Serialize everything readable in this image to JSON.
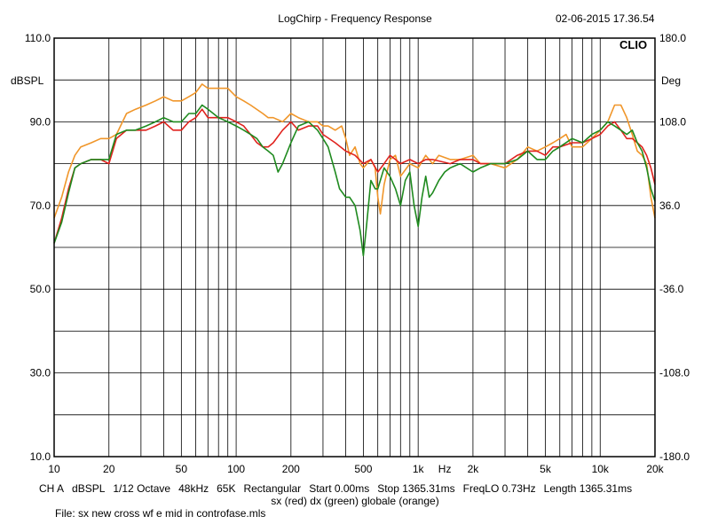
{
  "header": {
    "title": "LogChirp - Frequency Response",
    "timestamp": "02-06-2015 17.36.54",
    "brand": "CLIO"
  },
  "footer": {
    "settings": [
      "CH A",
      "dBSPL",
      "1/12 Octave",
      "48kHz",
      "65K",
      "Rectangular",
      "Start 0.00ms",
      "Stop 1365.31ms",
      "FreqLO 0.73Hz",
      "Length 1365.31ms"
    ],
    "legend": "sx (red) dx (green) globale (orange)",
    "file": "File: sx new cross wf e mid in controfase.mls"
  },
  "colors": {
    "red": "#e0231e",
    "green": "#1f8a1f",
    "orange": "#f0962a"
  },
  "chart_data": {
    "type": "line",
    "xscale": "log",
    "xlabel": "Hz",
    "ylabel": "dBSPL",
    "y2label": "Deg",
    "xlim": [
      10,
      20000
    ],
    "ylim": [
      10,
      110
    ],
    "y2lim": [
      -180,
      180
    ],
    "x_ticks": [
      {
        "v": 10,
        "label": "10"
      },
      {
        "v": 20,
        "label": "20"
      },
      {
        "v": 50,
        "label": "50"
      },
      {
        "v": 100,
        "label": "100"
      },
      {
        "v": 200,
        "label": "200"
      },
      {
        "v": 500,
        "label": "500"
      },
      {
        "v": 1000,
        "label": "1k"
      },
      {
        "v": 2000,
        "label": "2k"
      },
      {
        "v": 5000,
        "label": "5k"
      },
      {
        "v": 10000,
        "label": "10k"
      },
      {
        "v": 20000,
        "label": "20k"
      }
    ],
    "y_ticks": [
      {
        "v": 110,
        "label": "110.0"
      },
      {
        "v": 90,
        "label": "90.0"
      },
      {
        "v": 70,
        "label": "70.0"
      },
      {
        "v": 50,
        "label": "50.0"
      },
      {
        "v": 30,
        "label": "30.0"
      },
      {
        "v": 10,
        "label": "10.0"
      }
    ],
    "y2_ticks": [
      {
        "v": 180,
        "label": "180.0"
      },
      {
        "v": 108,
        "label": "108.0"
      },
      {
        "v": 36,
        "label": "36.0"
      },
      {
        "v": -36,
        "label": "-36.0"
      },
      {
        "v": -108,
        "label": "-108.0"
      },
      {
        "v": -180,
        "label": "-180.0"
      }
    ],
    "series": [
      {
        "color": "#f0962a",
        "points": [
          [
            10,
            67
          ],
          [
            11,
            72
          ],
          [
            12,
            78
          ],
          [
            13,
            82
          ],
          [
            14,
            84
          ],
          [
            16,
            85
          ],
          [
            18,
            86
          ],
          [
            20,
            86
          ],
          [
            22,
            87
          ],
          [
            25,
            92
          ],
          [
            28,
            93
          ],
          [
            32,
            94
          ],
          [
            36,
            95
          ],
          [
            40,
            96
          ],
          [
            45,
            95
          ],
          [
            50,
            95
          ],
          [
            55,
            96
          ],
          [
            60,
            97
          ],
          [
            65,
            99
          ],
          [
            70,
            98
          ],
          [
            80,
            98
          ],
          [
            90,
            98
          ],
          [
            100,
            96
          ],
          [
            110,
            95
          ],
          [
            120,
            94
          ],
          [
            140,
            92
          ],
          [
            150,
            91
          ],
          [
            160,
            91
          ],
          [
            180,
            90
          ],
          [
            200,
            92
          ],
          [
            220,
            91
          ],
          [
            250,
            90
          ],
          [
            280,
            90
          ],
          [
            300,
            89
          ],
          [
            320,
            89
          ],
          [
            350,
            88
          ],
          [
            380,
            89
          ],
          [
            400,
            86
          ],
          [
            420,
            82
          ],
          [
            450,
            84
          ],
          [
            480,
            80
          ],
          [
            500,
            79
          ],
          [
            550,
            81
          ],
          [
            580,
            79
          ],
          [
            600,
            72
          ],
          [
            620,
            68
          ],
          [
            650,
            75
          ],
          [
            700,
            81
          ],
          [
            750,
            82
          ],
          [
            800,
            77
          ],
          [
            900,
            80
          ],
          [
            1000,
            79
          ],
          [
            1100,
            82
          ],
          [
            1200,
            80
          ],
          [
            1300,
            82
          ],
          [
            1500,
            81
          ],
          [
            1700,
            81
          ],
          [
            2000,
            82
          ],
          [
            2200,
            80
          ],
          [
            2500,
            80
          ],
          [
            3000,
            79
          ],
          [
            3500,
            81
          ],
          [
            4000,
            84
          ],
          [
            4500,
            83
          ],
          [
            5000,
            84
          ],
          [
            5500,
            85
          ],
          [
            6000,
            86
          ],
          [
            6500,
            87
          ],
          [
            7000,
            84
          ],
          [
            8000,
            84
          ],
          [
            9000,
            86
          ],
          [
            10000,
            88
          ],
          [
            11000,
            90
          ],
          [
            12000,
            94
          ],
          [
            13000,
            94
          ],
          [
            14000,
            91
          ],
          [
            15000,
            87
          ],
          [
            16000,
            83
          ],
          [
            17000,
            82
          ],
          [
            18000,
            80
          ],
          [
            19000,
            72
          ],
          [
            20000,
            67
          ]
        ]
      },
      {
        "color": "#e0231e",
        "points": [
          [
            10,
            61
          ],
          [
            11,
            67
          ],
          [
            12,
            74
          ],
          [
            13,
            79
          ],
          [
            14,
            80
          ],
          [
            16,
            81
          ],
          [
            18,
            81
          ],
          [
            20,
            80
          ],
          [
            22,
            86
          ],
          [
            25,
            88
          ],
          [
            28,
            88
          ],
          [
            32,
            88
          ],
          [
            36,
            89
          ],
          [
            40,
            90
          ],
          [
            45,
            88
          ],
          [
            50,
            88
          ],
          [
            55,
            90
          ],
          [
            60,
            91
          ],
          [
            65,
            93
          ],
          [
            70,
            91
          ],
          [
            80,
            91
          ],
          [
            90,
            91
          ],
          [
            100,
            90
          ],
          [
            110,
            89
          ],
          [
            120,
            87
          ],
          [
            130,
            85
          ],
          [
            140,
            84
          ],
          [
            150,
            84
          ],
          [
            160,
            85
          ],
          [
            180,
            88
          ],
          [
            200,
            90
          ],
          [
            220,
            88
          ],
          [
            250,
            89
          ],
          [
            280,
            89
          ],
          [
            300,
            87
          ],
          [
            350,
            85
          ],
          [
            400,
            83
          ],
          [
            450,
            82
          ],
          [
            500,
            80
          ],
          [
            550,
            81
          ],
          [
            600,
            78
          ],
          [
            650,
            80
          ],
          [
            700,
            82
          ],
          [
            750,
            81
          ],
          [
            800,
            80
          ],
          [
            900,
            81
          ],
          [
            1000,
            80
          ],
          [
            1100,
            81
          ],
          [
            1200,
            81
          ],
          [
            1500,
            80
          ],
          [
            1700,
            81
          ],
          [
            2000,
            81
          ],
          [
            2200,
            80
          ],
          [
            2500,
            80
          ],
          [
            3000,
            80
          ],
          [
            3500,
            82
          ],
          [
            4000,
            83
          ],
          [
            4500,
            83
          ],
          [
            5000,
            82
          ],
          [
            5500,
            84
          ],
          [
            6000,
            84
          ],
          [
            7000,
            85
          ],
          [
            8000,
            85
          ],
          [
            9000,
            86
          ],
          [
            10000,
            87
          ],
          [
            11000,
            89
          ],
          [
            12000,
            90
          ],
          [
            13000,
            88
          ],
          [
            14000,
            86
          ],
          [
            15000,
            86
          ],
          [
            16000,
            85
          ],
          [
            17000,
            84
          ],
          [
            18000,
            82
          ],
          [
            19000,
            79
          ],
          [
            20000,
            75
          ]
        ]
      },
      {
        "color": "#1f8a1f",
        "points": [
          [
            10,
            61
          ],
          [
            11,
            66
          ],
          [
            12,
            73
          ],
          [
            13,
            79
          ],
          [
            14,
            80
          ],
          [
            16,
            81
          ],
          [
            18,
            81
          ],
          [
            20,
            81
          ],
          [
            22,
            87
          ],
          [
            25,
            88
          ],
          [
            28,
            88
          ],
          [
            32,
            89
          ],
          [
            36,
            90
          ],
          [
            40,
            91
          ],
          [
            45,
            90
          ],
          [
            50,
            90
          ],
          [
            55,
            92
          ],
          [
            60,
            92
          ],
          [
            65,
            94
          ],
          [
            70,
            93
          ],
          [
            80,
            91
          ],
          [
            90,
            90
          ],
          [
            100,
            89
          ],
          [
            110,
            88
          ],
          [
            120,
            87
          ],
          [
            130,
            86
          ],
          [
            140,
            84
          ],
          [
            150,
            83
          ],
          [
            160,
            82
          ],
          [
            170,
            78
          ],
          [
            180,
            80
          ],
          [
            200,
            85
          ],
          [
            220,
            89
          ],
          [
            250,
            90
          ],
          [
            280,
            88
          ],
          [
            300,
            86
          ],
          [
            320,
            84
          ],
          [
            350,
            78
          ],
          [
            370,
            74
          ],
          [
            400,
            72
          ],
          [
            420,
            72
          ],
          [
            450,
            70
          ],
          [
            480,
            64
          ],
          [
            500,
            58
          ],
          [
            520,
            65
          ],
          [
            550,
            76
          ],
          [
            580,
            74
          ],
          [
            600,
            74
          ],
          [
            650,
            79
          ],
          [
            700,
            77
          ],
          [
            750,
            74
          ],
          [
            800,
            70
          ],
          [
            850,
            76
          ],
          [
            900,
            78
          ],
          [
            950,
            70
          ],
          [
            1000,
            65
          ],
          [
            1050,
            72
          ],
          [
            1100,
            77
          ],
          [
            1150,
            72
          ],
          [
            1200,
            73
          ],
          [
            1300,
            76
          ],
          [
            1400,
            78
          ],
          [
            1500,
            79
          ],
          [
            1700,
            80
          ],
          [
            2000,
            78
          ],
          [
            2200,
            79
          ],
          [
            2500,
            80
          ],
          [
            3000,
            80
          ],
          [
            3500,
            81
          ],
          [
            4000,
            83
          ],
          [
            4500,
            81
          ],
          [
            5000,
            81
          ],
          [
            5500,
            83
          ],
          [
            6000,
            84
          ],
          [
            7000,
            86
          ],
          [
            8000,
            85
          ],
          [
            9000,
            87
          ],
          [
            10000,
            88
          ],
          [
            11000,
            90
          ],
          [
            12000,
            89
          ],
          [
            13000,
            88
          ],
          [
            14000,
            87
          ],
          [
            15000,
            88
          ],
          [
            16000,
            85
          ],
          [
            17000,
            83
          ],
          [
            18000,
            79
          ],
          [
            19000,
            74
          ],
          [
            20000,
            71
          ]
        ]
      }
    ]
  }
}
